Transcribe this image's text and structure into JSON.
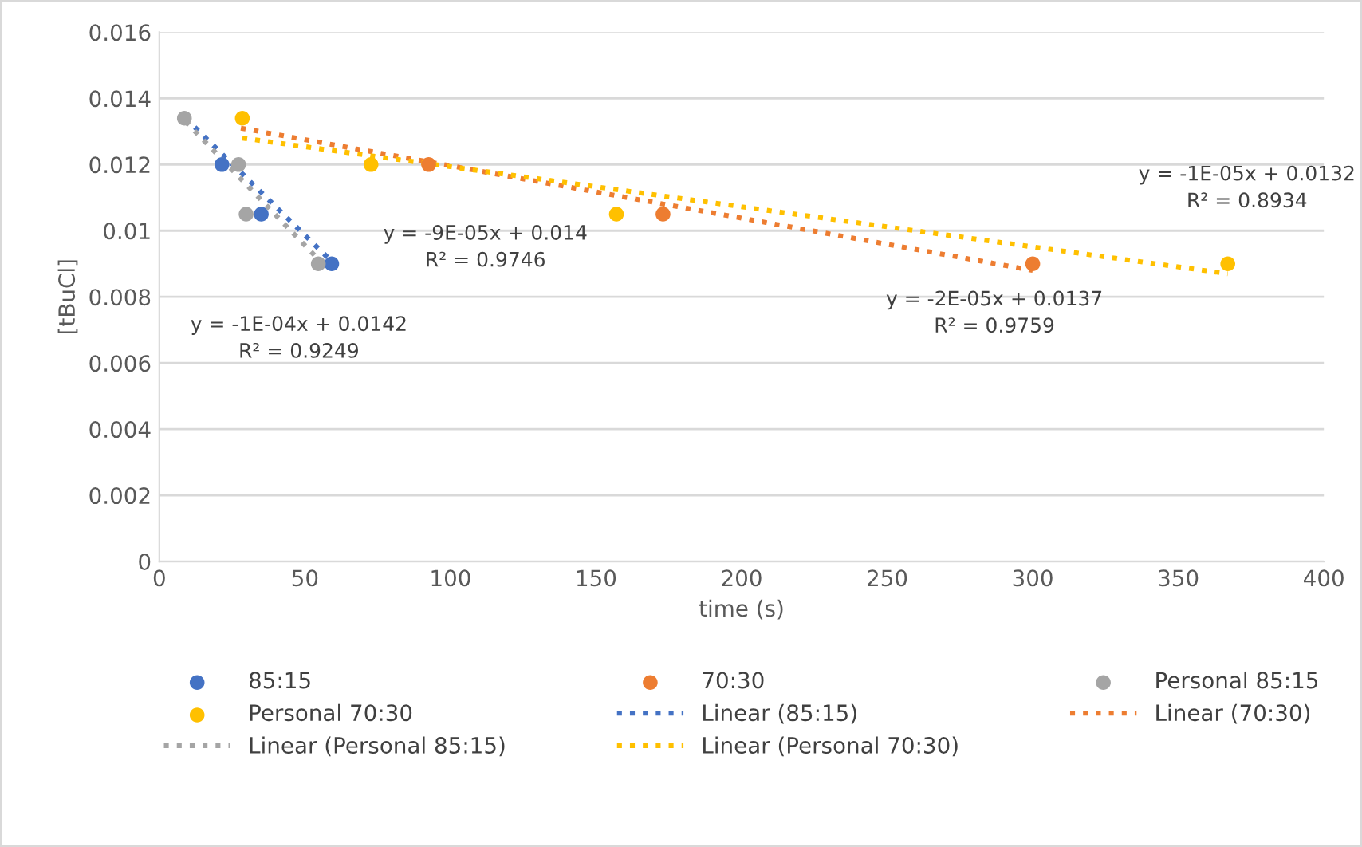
{
  "chart_data": {
    "type": "scatter",
    "xlabel": "time (s)",
    "ylabel": "[tBuCl]",
    "xlim": [
      0,
      400
    ],
    "xticks": [
      0,
      50,
      100,
      150,
      200,
      250,
      300,
      350,
      400
    ],
    "ylim": [
      0,
      0.016
    ],
    "yticks": [
      0,
      0.002,
      0.004,
      0.006,
      0.008,
      0.01,
      0.012,
      0.014,
      0.016
    ],
    "grid": "y",
    "legend": "bottom",
    "series": [
      {
        "name": "85:15",
        "marker": "circle",
        "color": "#4472c4",
        "x": [
          21.5,
          35,
          59.2
        ],
        "values": [
          0.012,
          0.0105,
          0.009
        ]
      },
      {
        "name": "70:30",
        "marker": "circle",
        "color": "#ed7d31",
        "x": [
          92.5,
          173,
          300
        ],
        "values": [
          0.012,
          0.0105,
          0.009
        ]
      },
      {
        "name": "Personal 85:15",
        "marker": "circle",
        "color": "#a5a5a5",
        "x": [
          8.6,
          27.2,
          29.8,
          54.6
        ],
        "values": [
          0.0134,
          0.012,
          0.0105,
          0.009
        ]
      },
      {
        "name": "Personal 70:30",
        "marker": "circle",
        "color": "#ffc000",
        "x": [
          28.5,
          72.7,
          157,
          367
        ],
        "values": [
          0.0134,
          0.012,
          0.0105,
          0.009
        ]
      },
      {
        "name": "Linear (85:15)",
        "type": "line",
        "line_style": "dotted",
        "color": "#4472c4",
        "x": [
          9,
          60
        ],
        "values": [
          0.0134,
          0.009
        ]
      },
      {
        "name": "Linear (70:30)",
        "type": "line",
        "line_style": "dotted",
        "color": "#ed7d31",
        "x": [
          28,
          300
        ],
        "values": [
          0.0131,
          0.0088
        ]
      },
      {
        "name": "Linear (Personal 85:15)",
        "type": "line",
        "line_style": "dotted",
        "color": "#a5a5a5",
        "x": [
          9,
          55
        ],
        "values": [
          0.0133,
          0.0091
        ]
      },
      {
        "name": "Linear (Personal 70:30)",
        "type": "line",
        "line_style": "dotted",
        "color": "#ffc000",
        "x": [
          28.5,
          367
        ],
        "values": [
          0.0128,
          0.0087
        ]
      }
    ],
    "annotations": [
      {
        "text": "y = -1E-04x + 0.0142\nR² = 0.9249",
        "x": 60,
        "y": 0.009
      },
      "y = -9E-05x + 0.014\nR² = 0.9746",
      {
        "text": "y = -2E-05x + 0.0137\nR² = 0.9759",
        "x": 300,
        "y": 0.0088
      },
      "y = -1E-05x + 0.0132\nR² = 0.8934"
    ]
  }
}
